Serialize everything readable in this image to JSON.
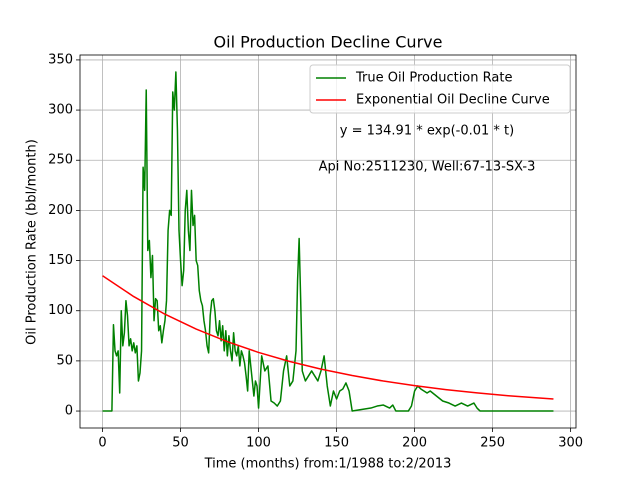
{
  "chart_data": {
    "type": "line",
    "title": "Oil Production Decline Curve",
    "x_label": "Time (months) from:1/1988 to:2/2013",
    "y_label": "Oil Production Rate (bbl/month)",
    "annotations": [
      "y = 134.91 * exp(-0.01 * t)",
      "Api No:2511230, Well:67-13-SX-3"
    ],
    "xlim": [
      -14.45,
      303.45
    ],
    "xticks": [
      0,
      50,
      100,
      150,
      200,
      250,
      300
    ],
    "ylim": [
      -16.9,
      354.9
    ],
    "yticks": [
      0,
      50,
      100,
      150,
      200,
      250,
      300,
      350
    ],
    "grid": true,
    "legend": "upper right",
    "series": [
      {
        "name": "True Oil Production Rate",
        "color": "#008000",
        "x": [
          0,
          6,
          7,
          8,
          9,
          10,
          11,
          12,
          13,
          14,
          15,
          16,
          17,
          18,
          19,
          20,
          21,
          22,
          23,
          24,
          25,
          26,
          27,
          28,
          29,
          30,
          31,
          32,
          33,
          34,
          35,
          36,
          37,
          38,
          39,
          40,
          41,
          42,
          43,
          44,
          45,
          46,
          47,
          48,
          49,
          50,
          51,
          52,
          53,
          54,
          55,
          56,
          57,
          58,
          59,
          60,
          61,
          62,
          63,
          64,
          65,
          66,
          67,
          68,
          69,
          70,
          71,
          72,
          73,
          74,
          75,
          76,
          77,
          78,
          79,
          80,
          81,
          82,
          83,
          84,
          85,
          86,
          87,
          88,
          89,
          90,
          91,
          92,
          93,
          94,
          95,
          96,
          97,
          98,
          99,
          100,
          102,
          104,
          106,
          108,
          110,
          112,
          114,
          116,
          118,
          120,
          122,
          124,
          125,
          126,
          127,
          128,
          130,
          132,
          134,
          136,
          138,
          140,
          142,
          144,
          146,
          148,
          150,
          152,
          154,
          156,
          158,
          160,
          172,
          176,
          180,
          184,
          186,
          188,
          196,
          198,
          200,
          202,
          204,
          206,
          208,
          210,
          214,
          218,
          222,
          226,
          230,
          234,
          238,
          240,
          242,
          289
        ],
        "values": [
          0,
          0,
          86,
          60,
          55,
          60,
          18,
          100,
          65,
          78,
          110,
          95,
          65,
          72,
          60,
          68,
          58,
          65,
          30,
          38,
          60,
          243,
          220,
          320,
          160,
          170,
          133,
          155,
          90,
          112,
          110,
          80,
          85,
          68,
          80,
          90,
          110,
          180,
          200,
          195,
          318,
          300,
          338,
          280,
          180,
          150,
          125,
          140,
          200,
          220,
          180,
          160,
          220,
          185,
          195,
          150,
          145,
          120,
          110,
          105,
          90,
          80,
          65,
          58,
          95,
          110,
          112,
          100,
          80,
          75,
          90,
          70,
          85,
          60,
          80,
          55,
          75,
          60,
          50,
          78,
          60,
          55,
          65,
          45,
          60,
          55,
          48,
          35,
          20,
          60,
          45,
          30,
          15,
          30,
          25,
          3,
          55,
          40,
          45,
          10,
          8,
          5,
          10,
          40,
          55,
          25,
          30,
          60,
          130,
          172,
          110,
          40,
          30,
          35,
          40,
          35,
          30,
          40,
          55,
          25,
          5,
          20,
          12,
          20,
          22,
          28,
          20,
          0,
          3,
          5,
          6,
          3,
          6,
          0,
          0,
          5,
          20,
          25,
          22,
          20,
          18,
          20,
          15,
          10,
          8,
          5,
          8,
          5,
          8,
          3,
          0,
          0
        ]
      },
      {
        "name": "Exponential Oil Decline Curve",
        "color": "#ff0000",
        "x": [
          0,
          20,
          40,
          60,
          80,
          100,
          120,
          140,
          160,
          180,
          200,
          220,
          240,
          260,
          280,
          289
        ],
        "values": [
          134.9,
          114.1,
          96.5,
          81.7,
          69.1,
          58.4,
          49.4,
          41.8,
          35.4,
          29.9,
          25.3,
          21.4,
          18.1,
          15.3,
          13.0,
          12.0
        ]
      }
    ]
  }
}
